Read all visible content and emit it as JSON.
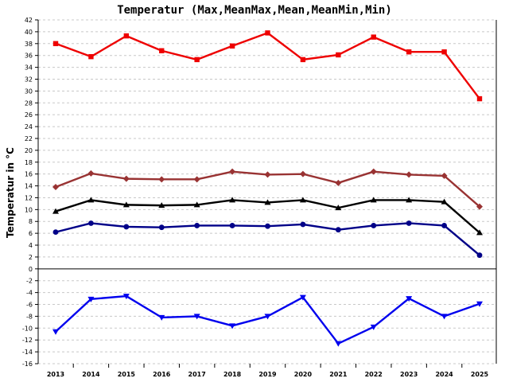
{
  "chart_data": {
    "type": "line",
    "title": "Temperatur (Max,MeanMax,Mean,MeanMin,Min)",
    "ylabel": "Temperatur in °C",
    "xlabel": "",
    "categories": [
      "2013",
      "2014",
      "2015",
      "2016",
      "2017",
      "2018",
      "2019",
      "2020",
      "2021",
      "2022",
      "2023",
      "2024",
      "2025"
    ],
    "ylim": [
      -16,
      42
    ],
    "yticks": [
      42,
      40,
      38,
      36,
      34,
      32,
      30,
      28,
      26,
      24,
      22,
      20,
      18,
      16,
      14,
      12,
      10,
      8,
      6,
      4,
      2,
      0,
      -2,
      -4,
      -6,
      -8,
      -10,
      -12,
      -14,
      -16
    ],
    "grid": true,
    "series": [
      {
        "key": "max",
        "color": "#ee0000",
        "marker": "square",
        "values": [
          38.0,
          35.8,
          39.3,
          36.8,
          35.3,
          37.6,
          39.8,
          35.3,
          36.1,
          39.1,
          36.6,
          36.6,
          28.7
        ]
      },
      {
        "key": "meanmax",
        "color": "#993333",
        "marker": "diamond",
        "values": [
          13.8,
          16.1,
          15.2,
          15.1,
          15.1,
          16.4,
          15.9,
          16.0,
          14.5,
          16.4,
          15.9,
          15.7,
          10.5
        ]
      },
      {
        "key": "mean",
        "color": "#000000",
        "marker": "triangle",
        "values": [
          9.7,
          11.6,
          10.8,
          10.7,
          10.8,
          11.6,
          11.2,
          11.6,
          10.3,
          11.6,
          11.6,
          11.3,
          6.1
        ]
      },
      {
        "key": "meanmin",
        "color": "#000088",
        "marker": "circle",
        "values": [
          6.2,
          7.7,
          7.1,
          7.0,
          7.3,
          7.3,
          7.2,
          7.5,
          6.6,
          7.3,
          7.7,
          7.3,
          2.3
        ]
      },
      {
        "key": "min",
        "color": "#0000ee",
        "marker": "triangle-down",
        "values": [
          -10.6,
          -5.1,
          -4.6,
          -8.2,
          -8.0,
          -9.6,
          -8.0,
          -4.8,
          -12.6,
          -9.8,
          -5.0,
          -8.0,
          -5.9
        ]
      }
    ]
  }
}
